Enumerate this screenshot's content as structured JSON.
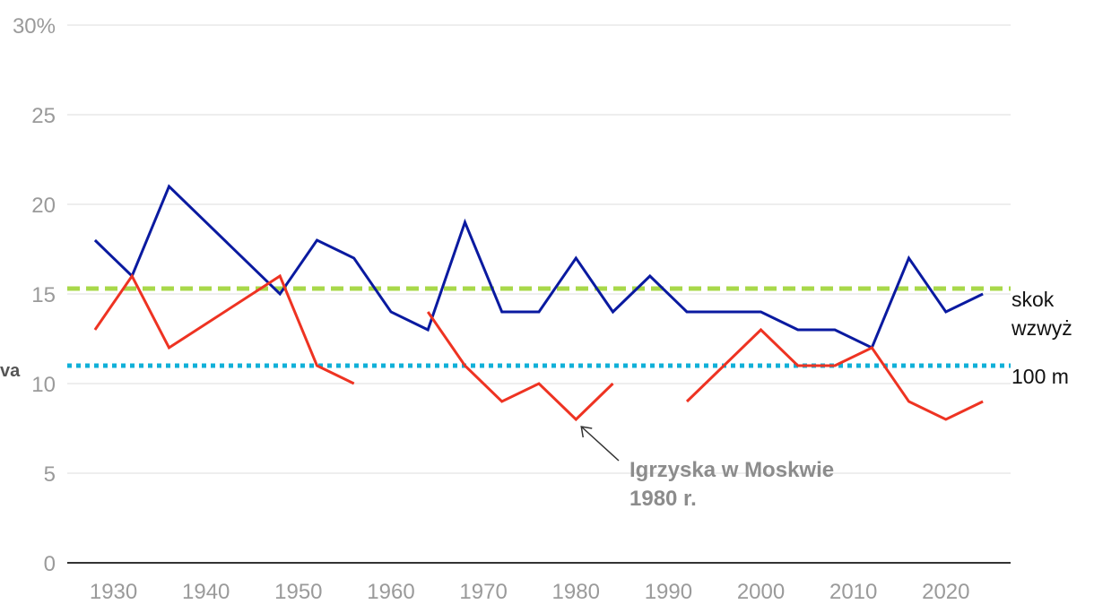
{
  "chart_data": {
    "type": "line",
    "ylim": [
      0,
      30
    ],
    "xlim": [
      1925,
      2027
    ],
    "y_ticks": [
      "0",
      "5",
      "10",
      "15",
      "20",
      "25",
      "30%"
    ],
    "x_ticks": [
      "1930",
      "1940",
      "1950",
      "1960",
      "1970",
      "1980",
      "1990",
      "2000",
      "2010",
      "2020"
    ],
    "grid": true,
    "edge_label": "va",
    "colors": {
      "blue": "#0a1aa0",
      "red": "#ee3322",
      "green": "#a8d84a",
      "cyan": "#10b0d8"
    },
    "series": [
      {
        "key": "blue",
        "color": "#0a1aa0",
        "x": [
          1928,
          1932,
          1936,
          1948,
          1952,
          1956,
          1960,
          1964,
          1968,
          1972,
          1976,
          1980,
          1984,
          1988,
          1992,
          1996,
          2000,
          2004,
          2008,
          2012,
          2016,
          2020,
          2024
        ],
        "y": [
          18,
          16,
          21,
          15,
          18,
          17,
          14,
          13,
          19,
          14,
          14,
          17,
          14,
          16,
          14,
          14,
          14,
          13,
          13,
          12,
          17,
          14,
          15
        ]
      },
      {
        "key": "red",
        "color": "#ee3322",
        "segments": [
          {
            "x": [
              1928,
              1932,
              1936,
              1948,
              1952,
              1956
            ],
            "y": [
              13,
              16,
              12,
              16,
              11,
              10
            ]
          },
          {
            "x": [
              1964,
              1968,
              1972,
              1976,
              1980,
              1984
            ],
            "y": [
              14,
              11,
              9,
              10,
              8,
              10
            ]
          },
          {
            "x": [
              1992,
              2000,
              2004,
              2008,
              2012,
              2016,
              2020,
              2024
            ],
            "y": [
              9,
              13,
              11,
              11,
              12,
              9,
              8,
              9
            ]
          }
        ]
      }
    ],
    "reference_lines": [
      {
        "key": "green",
        "y": 15.3,
        "color": "#a8d84a",
        "style": "dashed",
        "label_lines": [
          "skok",
          "wzwyż"
        ]
      },
      {
        "key": "cyan",
        "y": 11,
        "color": "#10b0d8",
        "style": "dotted",
        "label_lines": [
          "100 m"
        ]
      }
    ],
    "annotation": {
      "lines": [
        "Igrzyska w Moskwie",
        "1980 r."
      ],
      "target": {
        "x": 1980,
        "y": 8
      }
    }
  }
}
